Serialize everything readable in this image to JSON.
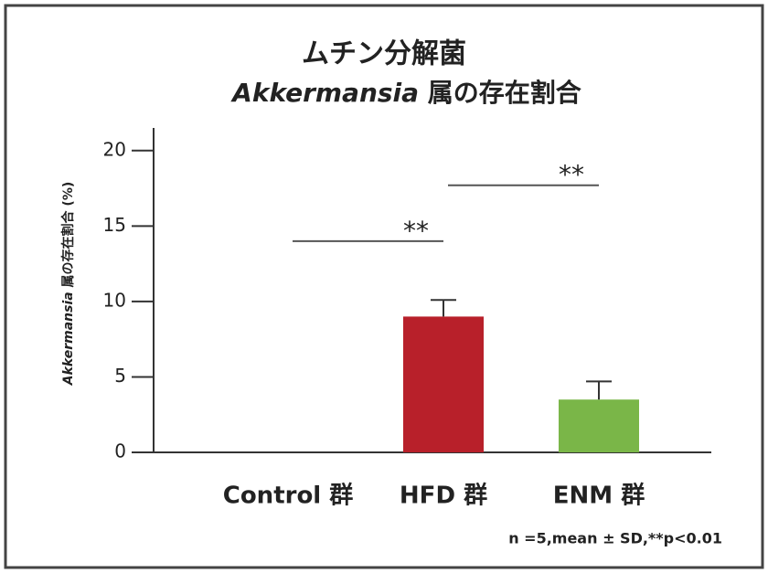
{
  "chart_data": {
    "type": "bar",
    "title": "ムチン分解菌",
    "subtitle_italic": "Akkermansia",
    "subtitle": "属の存在割合",
    "y_label_italic": "Akkermansia",
    "y_label": "属の存在割合 (%)",
    "categories": [
      "Control 群",
      "HFD 群",
      "ENM 群"
    ],
    "series": [
      {
        "values": [
          0,
          9.0,
          3.5
        ],
        "errors": [
          0,
          1.1,
          1.2
        ],
        "colors": [
          "#b8202a",
          "#b8202a",
          "#7ab648"
        ]
      }
    ],
    "ylim": [
      0,
      21.5
    ],
    "yticks": [
      0,
      5,
      10,
      15,
      20
    ],
    "significance": [
      {
        "label": "**",
        "between": [
          0,
          1
        ],
        "y": 14.0
      },
      {
        "label": "**",
        "between": [
          1,
          2
        ],
        "y": 17.7
      }
    ],
    "note": "n =5,mean ± SD,**p<0.01"
  }
}
